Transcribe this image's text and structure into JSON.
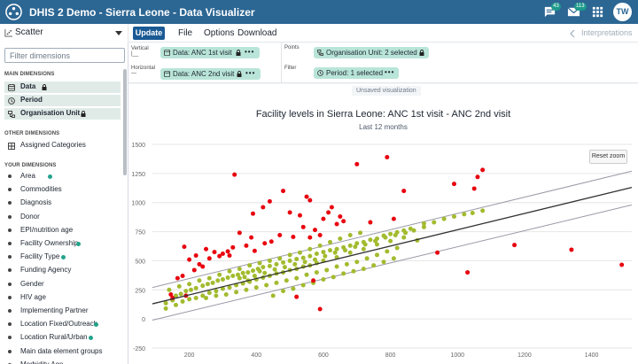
{
  "app": {
    "title": "DHIS 2 Demo - Sierra Leone - Data Visualizer"
  },
  "header": {
    "messages_badge": "43",
    "email_badge": "113",
    "avatar_initials": "TW"
  },
  "menubar": {
    "vis_type": "Scatter",
    "update_label": "Update",
    "file_label": "File",
    "options_label": "Options",
    "download_label": "Download",
    "interpretations_label": "Interpretations"
  },
  "left_panel": {
    "filter_placeholder": "Filter dimensions",
    "main_title": "MAIN DIMENSIONS",
    "main_items": [
      "Data",
      "Period",
      "Organisation Unit"
    ],
    "other_title": "OTHER DIMENSIONS",
    "other_items": [
      "Assigned Categories"
    ],
    "your_title": "YOUR DIMENSIONS",
    "your_items": [
      "Area",
      "Commodities",
      "Diagnosis",
      "Donor",
      "EPI/nutrition age",
      "Facility Ownership",
      "Facility Type",
      "Funding Agency",
      "Gender",
      "HIV age",
      "Implementing Partner",
      "Location Fixed/Outreach",
      "Location Rural/Urban",
      "Main data element groups",
      "Morbidity Age"
    ],
    "your_items_dotted": [
      true,
      false,
      false,
      false,
      false,
      true,
      true,
      false,
      false,
      false,
      false,
      true,
      true,
      false,
      false
    ]
  },
  "layout": {
    "vertical_label": "Vertical",
    "vertical_chip": "Data: ANC 1st visit",
    "horizontal_label": "Horizontal",
    "horizontal_chip": "Data: ANC 2nd visit",
    "points_label": "Points",
    "points_chip": "Organisation Unit: 2 selected",
    "filter_label": "Filter",
    "filter_chip": "Period: 1 selected"
  },
  "visualization": {
    "unsaved_label": "Unsaved visualization",
    "reset_zoom_label": "Reset zoom"
  },
  "colors": {
    "header_bg": "#2c6693",
    "chip_bg": "#b9e5d8",
    "outlier": "#e8040f",
    "inlier": "#a2bb2e",
    "regression": "#333333",
    "bounds": "#9a9aa8"
  },
  "chart_data": {
    "type": "scatter",
    "title": "Facility levels in Sierra Leone: ANC 1st visit - ANC 2nd visit",
    "subtitle": "Last 12 months",
    "xlim": [
      90,
      1520
    ],
    "ylim": [
      -250,
      1500
    ],
    "x_ticks": [
      200,
      400,
      600,
      800,
      1000,
      1200,
      1400
    ],
    "y_ticks": [
      -250,
      0,
      250,
      500,
      750,
      1000,
      1250,
      1500
    ],
    "regression_line": [
      [
        90,
        130
      ],
      [
        1520,
        1130
      ]
    ],
    "upper_bound": [
      [
        90,
        270
      ],
      [
        1520,
        1270
      ]
    ],
    "lower_bound": [
      [
        90,
        -10
      ],
      [
        1520,
        980
      ]
    ],
    "outliers": [
      [
        335,
        1240
      ],
      [
        700,
        1330
      ],
      [
        790,
        1390
      ],
      [
        1075,
        1280
      ],
      [
        1060,
        1220
      ],
      [
        990,
        1160
      ],
      [
        840,
        1100
      ],
      [
        1050,
        1120
      ],
      [
        480,
        1100
      ],
      [
        550,
        1050
      ],
      [
        560,
        1020
      ],
      [
        440,
        1010
      ],
      [
        420,
        960
      ],
      [
        390,
        905
      ],
      [
        500,
        915
      ],
      [
        530,
        890
      ],
      [
        625,
        960
      ],
      [
        615,
        915
      ],
      [
        650,
        880
      ],
      [
        600,
        860
      ],
      [
        740,
        830
      ],
      [
        810,
        860
      ],
      [
        660,
        840
      ],
      [
        640,
        815
      ],
      [
        540,
        790
      ],
      [
        575,
        765
      ],
      [
        590,
        720
      ],
      [
        350,
        740
      ],
      [
        385,
        700
      ],
      [
        470,
        720
      ],
      [
        510,
        705
      ],
      [
        560,
        700
      ],
      [
        445,
        665
      ],
      [
        425,
        650
      ],
      [
        370,
        630
      ],
      [
        330,
        615
      ],
      [
        250,
        600
      ],
      [
        315,
        580
      ],
      [
        395,
        585
      ],
      [
        300,
        560
      ],
      [
        260,
        520
      ],
      [
        240,
        450
      ],
      [
        215,
        420
      ],
      [
        230,
        470
      ],
      [
        180,
        370
      ],
      [
        165,
        350
      ],
      [
        275,
        575
      ],
      [
        290,
        540
      ],
      [
        320,
        545
      ],
      [
        1170,
        635
      ],
      [
        1340,
        595
      ],
      [
        1490,
        465
      ],
      [
        1030,
        400
      ],
      [
        940,
        570
      ],
      [
        590,
        85
      ],
      [
        570,
        330
      ],
      [
        520,
        190
      ],
      [
        190,
        200
      ],
      [
        185,
        620
      ],
      [
        220,
        545
      ],
      [
        200,
        510
      ],
      [
        145,
        210
      ],
      [
        150,
        180
      ]
    ],
    "inliers": [
      [
        1075,
        930
      ],
      [
        880,
        675
      ],
      [
        130,
        135
      ],
      [
        150,
        160
      ],
      [
        160,
        200
      ],
      [
        175,
        215
      ],
      [
        190,
        240
      ],
      [
        205,
        250
      ],
      [
        220,
        265
      ],
      [
        240,
        285
      ],
      [
        255,
        300
      ],
      [
        270,
        310
      ],
      [
        285,
        330
      ],
      [
        300,
        340
      ],
      [
        315,
        355
      ],
      [
        330,
        370
      ],
      [
        345,
        380
      ],
      [
        360,
        395
      ],
      [
        375,
        400
      ],
      [
        390,
        415
      ],
      [
        405,
        430
      ],
      [
        420,
        445
      ],
      [
        440,
        455
      ],
      [
        460,
        470
      ],
      [
        480,
        485
      ],
      [
        500,
        500
      ],
      [
        520,
        515
      ],
      [
        540,
        525
      ],
      [
        560,
        540
      ],
      [
        580,
        560
      ],
      [
        600,
        575
      ],
      [
        620,
        590
      ],
      [
        640,
        600
      ],
      [
        660,
        615
      ],
      [
        680,
        630
      ],
      [
        700,
        650
      ],
      [
        720,
        660
      ],
      [
        740,
        680
      ],
      [
        760,
        690
      ],
      [
        780,
        715
      ],
      [
        800,
        730
      ],
      [
        820,
        745
      ],
      [
        840,
        760
      ],
      [
        860,
        775
      ],
      [
        900,
        790
      ],
      [
        130,
        90
      ],
      [
        160,
        120
      ],
      [
        180,
        150
      ],
      [
        200,
        170
      ],
      [
        220,
        180
      ],
      [
        240,
        200
      ],
      [
        260,
        225
      ],
      [
        280,
        240
      ],
      [
        300,
        260
      ],
      [
        320,
        270
      ],
      [
        340,
        290
      ],
      [
        360,
        305
      ],
      [
        380,
        320
      ],
      [
        400,
        340
      ],
      [
        420,
        355
      ],
      [
        440,
        370
      ],
      [
        460,
        390
      ],
      [
        480,
        400
      ],
      [
        500,
        420
      ],
      [
        520,
        430
      ],
      [
        540,
        450
      ],
      [
        560,
        460
      ],
      [
        580,
        480
      ],
      [
        600,
        500
      ],
      [
        640,
        530
      ],
      [
        680,
        570
      ],
      [
        720,
        600
      ],
      [
        760,
        640
      ],
      [
        800,
        670
      ],
      [
        840,
        700
      ],
      [
        140,
        250
      ],
      [
        170,
        280
      ],
      [
        200,
        300
      ],
      [
        230,
        330
      ],
      [
        260,
        350
      ],
      [
        290,
        380
      ],
      [
        320,
        410
      ],
      [
        350,
        430
      ],
      [
        380,
        460
      ],
      [
        410,
        480
      ],
      [
        440,
        500
      ],
      [
        470,
        520
      ],
      [
        500,
        550
      ],
      [
        530,
        570
      ],
      [
        560,
        600
      ],
      [
        590,
        630
      ],
      [
        620,
        660
      ],
      [
        650,
        690
      ],
      [
        680,
        720
      ],
      [
        710,
        740
      ],
      [
        250,
        180
      ],
      [
        280,
        200
      ],
      [
        310,
        210
      ],
      [
        340,
        230
      ],
      [
        370,
        250
      ],
      [
        400,
        270
      ],
      [
        430,
        290
      ],
      [
        460,
        310
      ],
      [
        490,
        330
      ],
      [
        520,
        350
      ],
      [
        550,
        380
      ],
      [
        580,
        400
      ],
      [
        610,
        420
      ],
      [
        640,
        450
      ],
      [
        670,
        470
      ],
      [
        700,
        490
      ],
      [
        730,
        520
      ],
      [
        760,
        550
      ],
      [
        790,
        580
      ],
      [
        820,
        610
      ],
      [
        450,
        200
      ],
      [
        480,
        240
      ],
      [
        510,
        260
      ],
      [
        540,
        290
      ],
      [
        570,
        310
      ],
      [
        600,
        340
      ],
      [
        630,
        360
      ],
      [
        660,
        390
      ],
      [
        690,
        410
      ],
      [
        720,
        430
      ],
      [
        750,
        460
      ],
      [
        780,
        490
      ],
      [
        810,
        520
      ],
      [
        350,
        350
      ],
      [
        375,
        330
      ],
      [
        410,
        410
      ],
      [
        365,
        360
      ],
      [
        395,
        370
      ],
      [
        425,
        395
      ],
      [
        455,
        425
      ],
      [
        485,
        445
      ],
      [
        515,
        470
      ],
      [
        545,
        490
      ],
      [
        575,
        510
      ],
      [
        605,
        540
      ],
      [
        635,
        570
      ],
      [
        665,
        590
      ],
      [
        695,
        620
      ],
      [
        725,
        640
      ],
      [
        755,
        670
      ],
      [
        785,
        700
      ],
      [
        815,
        720
      ],
      [
        845,
        740
      ],
      [
        870,
        760
      ],
      [
        900,
        820
      ],
      [
        930,
        830
      ],
      [
        960,
        860
      ],
      [
        990,
        880
      ],
      [
        1020,
        900
      ],
      [
        1045,
        910
      ]
    ]
  }
}
